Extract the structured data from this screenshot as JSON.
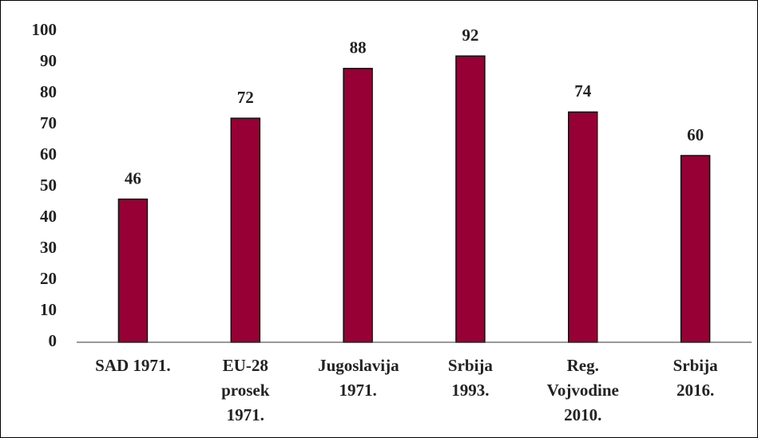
{
  "chart_data": {
    "type": "bar",
    "categories": [
      "SAD 1971.",
      "EU-28 prosek 1971.",
      "Jugoslavija 1971.",
      "Srbija 1993.",
      "Reg. Vojvodine 2010.",
      "Srbija 2016."
    ],
    "values": [
      46,
      72,
      88,
      92,
      74,
      60
    ],
    "color": "#960034",
    "ylim": [
      0,
      100
    ],
    "yticks": [
      0,
      10,
      20,
      30,
      40,
      50,
      60,
      70,
      80,
      90,
      100
    ],
    "grid": false
  }
}
